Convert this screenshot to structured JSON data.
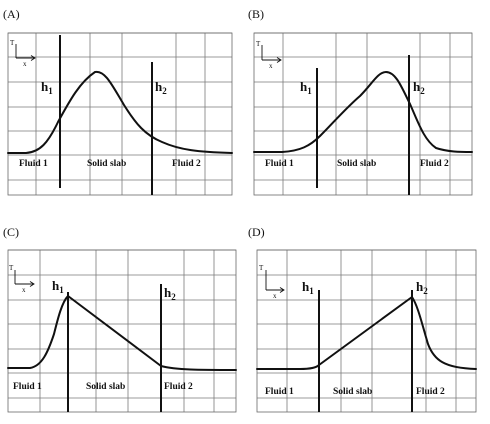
{
  "panels": [
    {
      "id": "A",
      "label": "(A)",
      "axis": {
        "y": "T",
        "x": "x"
      },
      "interfaces": [
        "h",
        "h"
      ],
      "interface_subs": [
        "1",
        "2"
      ],
      "regions": [
        "Fluid 1",
        "Solid slab",
        "Fluid 2"
      ],
      "profile": "smooth peak inside solid slab"
    },
    {
      "id": "B",
      "label": "(B)",
      "axis": {
        "y": "T",
        "x": "x"
      },
      "interfaces": [
        "h",
        "h"
      ],
      "interface_subs": [
        "1",
        "2"
      ],
      "regions": [
        "Fluid 1",
        "Solid slab",
        "Fluid 2"
      ],
      "profile": "smooth peak inside solid slab, shifted toward h2"
    },
    {
      "id": "C",
      "label": "(C)",
      "axis": {
        "y": "T",
        "x": "x"
      },
      "interfaces": [
        "h",
        "h"
      ],
      "interface_subs": [
        "1",
        "2"
      ],
      "regions": [
        "Fluid 1",
        "Solid slab",
        "Fluid 2"
      ],
      "profile": "maximum at h1, linear decrease across slab"
    },
    {
      "id": "D",
      "label": "(D)",
      "axis": {
        "y": "T",
        "x": "x"
      },
      "interfaces": [
        "h",
        "h"
      ],
      "interface_subs": [
        "1",
        "2"
      ],
      "regions": [
        "Fluid 1",
        "Solid slab",
        "Fluid 2"
      ],
      "profile": "linear increase across slab, maximum at h2"
    }
  ],
  "colors": {
    "line": "#111111",
    "grid": "#7a7a7a",
    "background": "#ffffff"
  }
}
